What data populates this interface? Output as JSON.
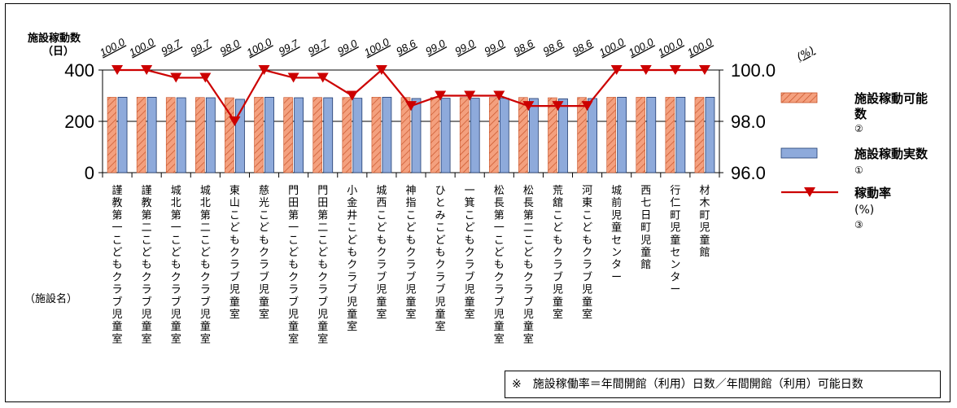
{
  "chart_data": {
    "type": "bar+line",
    "y_left_label": "施設稼動数",
    "y_left_unit": "（日）",
    "y_right_unit": "(%)",
    "x_axis_label": "（施設名）",
    "y_left_ticks": [
      "0",
      "200",
      "400"
    ],
    "y_left_lim": [
      0,
      400
    ],
    "y_right_ticks": [
      "96.0",
      "98.0",
      "100.0"
    ],
    "y_right_lim": [
      96,
      100
    ],
    "categories": [
      "謹教第一こどもクラブ児童室",
      "謹教第二こどもクラブ児童室",
      "城北第一こどもクラブ児童室",
      "城北第二こどもクラブ児童室",
      "東山こどもクラブ児童室",
      "慈光こどもクラブ児童室",
      "門田第一こどもクラブ児童室",
      "門田第二こどもクラブ児童室",
      "小金井こどもクラブ児童室",
      "城西こどもクラブ児童室",
      "神指こどもクラブ児童室",
      "ひとみこどもクラブ児童室",
      "一箕こどもクラブ児童室",
      "松長第一こどもクラブ児童室",
      "松長第二こどもクラブ児童室",
      "荒舘こどもクラブ児童室",
      "河東こどもクラブ児童室",
      "城前児童センター",
      "西七日町児童館",
      "行仁町児童センター",
      "材木町児童館"
    ],
    "series": [
      {
        "name": "施設稼動可能数",
        "name_line2": "②",
        "values": [
          294,
          294,
          293,
          293,
          292,
          294,
          293,
          293,
          293,
          294,
          293,
          293,
          293,
          293,
          293,
          292,
          293,
          294,
          294,
          294,
          294
        ]
      },
      {
        "name": "施設稼動実数",
        "name_line2": "①",
        "values": [
          294,
          294,
          292,
          292,
          286,
          294,
          292,
          292,
          290,
          294,
          289,
          290,
          290,
          290,
          289,
          288,
          289,
          294,
          294,
          294,
          294
        ]
      },
      {
        "name": "稼動率",
        "name_line2": "(%)",
        "name_line3": "③",
        "values": [
          100.0,
          100.0,
          99.7,
          99.7,
          98.0,
          100.0,
          99.7,
          99.7,
          99.0,
          100.0,
          98.6,
          99.0,
          99.0,
          99.0,
          98.6,
          98.6,
          98.6,
          100.0,
          100.0,
          100.0,
          100.0
        ],
        "labels": [
          "100.0",
          "100.0",
          "99.7",
          "99.7",
          "98.0",
          "100.0",
          "99.7",
          "99.7",
          "99.0",
          "100.0",
          "98.6",
          "99.0",
          "99.0",
          "99.0",
          "98.6",
          "98.6",
          "98.6",
          "100.0",
          "100.0",
          "100.0",
          "100.0"
        ]
      }
    ],
    "colors": {
      "bar_possible": "#f4a07e",
      "bar_possible_hatch": "#c8542a",
      "bar_actual": "#8eaadb",
      "bar_actual_edge": "#1f3a6e",
      "line": "#cc0000"
    },
    "legend_position": "right"
  },
  "note": "※　施設稼働率＝年間開館（利用）日数／年間開館（利用）可能日数"
}
